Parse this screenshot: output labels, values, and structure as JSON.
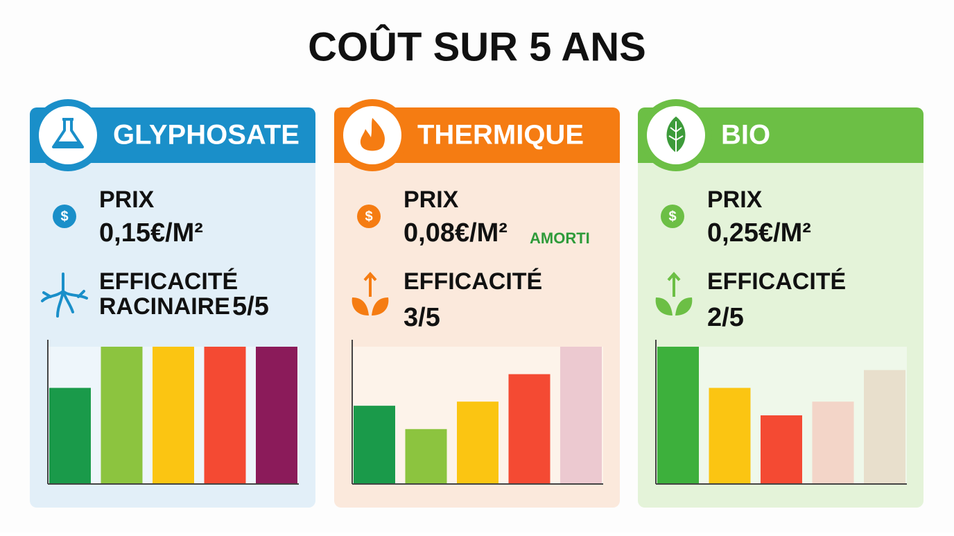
{
  "title": "COÛT SUR 5 ANS",
  "cards": [
    {
      "header": "GLYPHOSATE",
      "price_label": "PRIX",
      "price": "0,15€/M²",
      "efficacy_label": [
        "EFFICACITÉ",
        "RACINAIRE"
      ],
      "efficacy": "5/5"
    },
    {
      "header": "THERMIQUE",
      "price_label": "PRIX",
      "price": "0,08€/M²",
      "price_note": "AMORTI",
      "efficacy_label": [
        "EFFICACITÉ"
      ],
      "efficacy": "3/5"
    },
    {
      "header": "BIO",
      "price_label": "PRIX",
      "price": "0,25€/M²",
      "efficacy_label": [
        "EFFICACITÉ"
      ],
      "efficacy": "2/5"
    }
  ],
  "chart_data": [
    {
      "type": "bar",
      "values": [
        70,
        100,
        100,
        100,
        100
      ],
      "colors": [
        "#1a9a4a",
        "#8cc43f",
        "#fbc512",
        "#f44a33",
        "#8b1b5a"
      ],
      "ylim": [
        0,
        100
      ]
    },
    {
      "type": "bar",
      "values": [
        57,
        40,
        60,
        80,
        100
      ],
      "colors": [
        "#1a9a4a",
        "#8cc43f",
        "#fbc512",
        "#f44a33",
        "#ecc9d0"
      ],
      "ylim": [
        0,
        100
      ]
    },
    {
      "type": "bar",
      "values": [
        100,
        70,
        50,
        60,
        83
      ],
      "colors": [
        "#3db03c",
        "#fbc512",
        "#f44a33",
        "#f3d5c8",
        "#e8dfcc"
      ],
      "ylim": [
        0,
        100
      ]
    }
  ]
}
